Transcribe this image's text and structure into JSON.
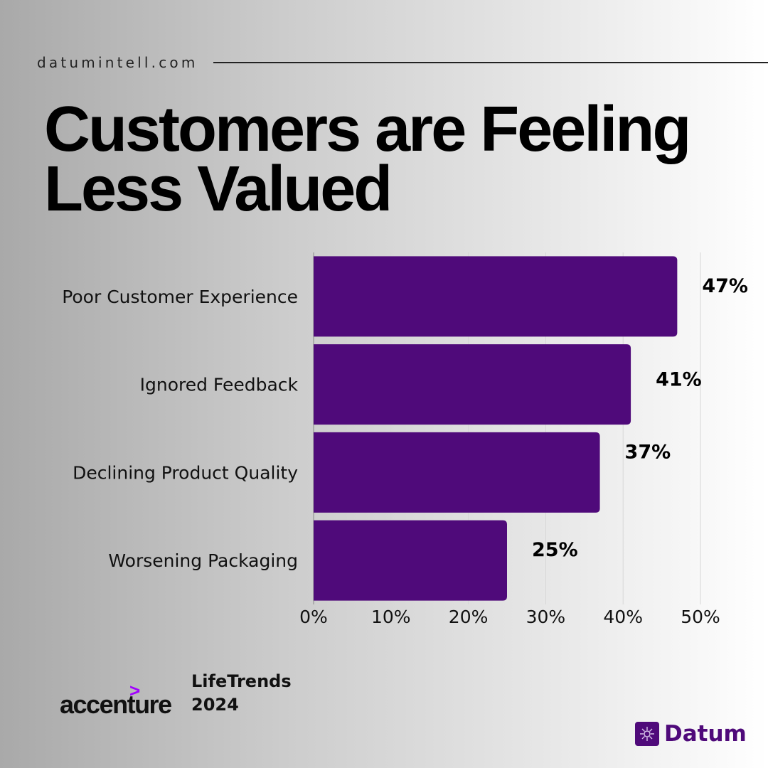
{
  "site": "datumintell.com",
  "title_lines": [
    "Customers are Feeling",
    "Less Valued"
  ],
  "chart_data": {
    "type": "bar",
    "orientation": "horizontal",
    "categories": [
      "Poor Customer Experience",
      "Ignored Feedback",
      "Declining Product Quality",
      "Worsening Packaging"
    ],
    "values": [
      47,
      41,
      37,
      25
    ],
    "value_labels": [
      "47%",
      "41%",
      "37%",
      "25%"
    ],
    "xlim": [
      0,
      50
    ],
    "xticks": [
      0,
      10,
      20,
      30,
      40,
      50
    ],
    "xtick_labels": [
      "0%",
      "10%",
      "20%",
      "30%",
      "40%",
      "50%"
    ],
    "grid": true,
    "bar_color": "#4f0a7a"
  },
  "source": {
    "logo_text": "accenture",
    "logo_mark": ">",
    "report_line1": "LifeTrends",
    "report_line2": "2024"
  },
  "brand": {
    "name": "Datum",
    "icon": "datum-logo-icon",
    "color": "#4f0a7a"
  }
}
